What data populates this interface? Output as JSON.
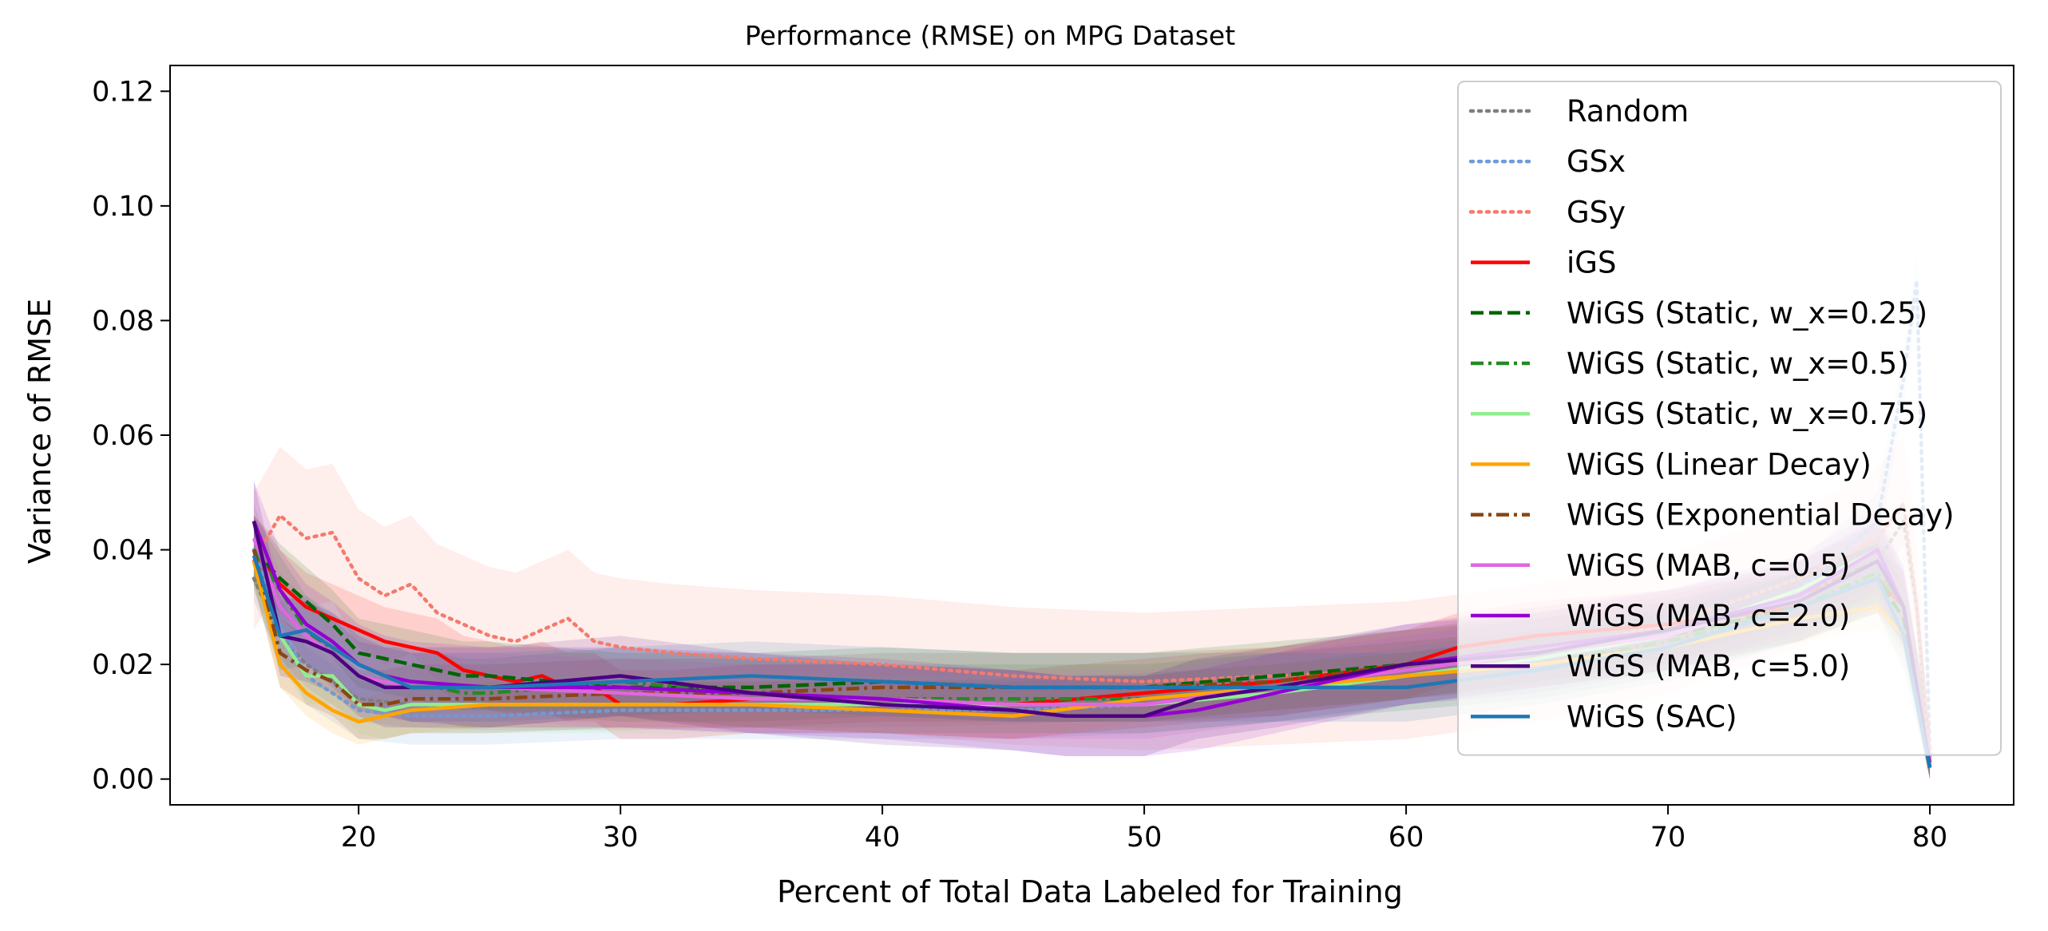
{
  "chart_data": {
    "type": "line",
    "title": "Performance (RMSE) on MPG Dataset",
    "xlabel": "Percent of Total Data Labeled for Training",
    "ylabel": "Variance of RMSE",
    "xlim": [
      12.8,
      83.2
    ],
    "ylim": [
      -0.0045,
      0.1245
    ],
    "xticks": [
      20,
      30,
      40,
      50,
      60,
      70,
      80
    ],
    "yticks": [
      0.0,
      0.02,
      0.04,
      0.06,
      0.08,
      0.1,
      0.12
    ],
    "xtick_labels": [
      "20",
      "30",
      "40",
      "50",
      "60",
      "70",
      "80"
    ],
    "ytick_labels": [
      "0.00",
      "0.02",
      "0.04",
      "0.06",
      "0.08",
      "0.10",
      "0.12"
    ],
    "grid": false,
    "legend_position": "top-right",
    "series": [
      {
        "name": "Random",
        "color": "#7f7f7f",
        "dash": "dotted",
        "band": 0.004,
        "x": [
          16,
          17,
          18,
          20,
          22,
          25,
          30,
          35,
          40,
          45,
          50,
          55,
          60,
          65,
          70,
          75,
          78,
          79,
          79.5,
          80
        ],
        "y": [
          0.035,
          0.025,
          0.02,
          0.014,
          0.013,
          0.0125,
          0.0125,
          0.013,
          0.013,
          0.0135,
          0.0145,
          0.016,
          0.018,
          0.021,
          0.025,
          0.032,
          0.038,
          0.045,
          0.03,
          0.003
        ]
      },
      {
        "name": "GSx",
        "color": "#6f9ad6",
        "dash": "dotted",
        "band": 0.005,
        "x": [
          16,
          17,
          18,
          20,
          22,
          25,
          30,
          35,
          40,
          45,
          50,
          55,
          60,
          65,
          70,
          75,
          78,
          79,
          79.5,
          80
        ],
        "y": [
          0.04,
          0.027,
          0.018,
          0.012,
          0.011,
          0.011,
          0.012,
          0.012,
          0.012,
          0.012,
          0.013,
          0.015,
          0.018,
          0.021,
          0.025,
          0.033,
          0.045,
          0.07,
          0.087,
          0.004
        ]
      },
      {
        "name": "GSy",
        "color": "#f47a6c",
        "dash": "dotted",
        "band": 0.012,
        "x": [
          16,
          17,
          18,
          19,
          20,
          21,
          22,
          23,
          24,
          25,
          26,
          27,
          28,
          29,
          30,
          32,
          35,
          40,
          45,
          50,
          55,
          60,
          65,
          70,
          75,
          78,
          79,
          79.5,
          80
        ],
        "y": [
          0.038,
          0.046,
          0.042,
          0.043,
          0.035,
          0.032,
          0.034,
          0.029,
          0.027,
          0.025,
          0.024,
          0.026,
          0.028,
          0.024,
          0.023,
          0.022,
          0.021,
          0.02,
          0.018,
          0.017,
          0.018,
          0.019,
          0.022,
          0.027,
          0.035,
          0.042,
          0.048,
          0.03,
          0.005
        ]
      },
      {
        "name": "iGS",
        "color": "#ff0000",
        "dash": "solid",
        "band": 0.006,
        "x": [
          16,
          17,
          18,
          19,
          20,
          21,
          22,
          23,
          24,
          25,
          26,
          27,
          28,
          29,
          30,
          32,
          35,
          40,
          45,
          50,
          55,
          60,
          62,
          65,
          70,
          75,
          78,
          79,
          80
        ],
        "y": [
          0.04,
          0.034,
          0.03,
          0.028,
          0.026,
          0.024,
          0.023,
          0.022,
          0.019,
          0.018,
          0.017,
          0.018,
          0.016,
          0.016,
          0.013,
          0.013,
          0.014,
          0.014,
          0.013,
          0.015,
          0.017,
          0.02,
          0.023,
          0.025,
          0.027,
          0.03,
          0.035,
          0.03,
          0.003
        ]
      },
      {
        "name": "WiGS (Static, w_x=0.25)",
        "color": "#006400",
        "dash": "dashed",
        "band": 0.006,
        "x": [
          16,
          17,
          18,
          19,
          20,
          21,
          22,
          23,
          24,
          25,
          30,
          35,
          40,
          45,
          50,
          55,
          60,
          65,
          70,
          75,
          78,
          79,
          80
        ],
        "y": [
          0.04,
          0.035,
          0.031,
          0.027,
          0.022,
          0.021,
          0.02,
          0.019,
          0.018,
          0.018,
          0.016,
          0.016,
          0.017,
          0.016,
          0.016,
          0.018,
          0.02,
          0.022,
          0.025,
          0.03,
          0.035,
          0.028,
          0.003
        ]
      },
      {
        "name": "WiGS (Static, w_x=0.5)",
        "color": "#228b22",
        "dash": "dashdot",
        "band": 0.006,
        "x": [
          16,
          17,
          18,
          19,
          20,
          21,
          22,
          23,
          24,
          25,
          30,
          35,
          40,
          45,
          50,
          55,
          60,
          65,
          70,
          75,
          78,
          79,
          80
        ],
        "y": [
          0.04,
          0.033,
          0.026,
          0.022,
          0.018,
          0.017,
          0.016,
          0.016,
          0.015,
          0.015,
          0.017,
          0.015,
          0.014,
          0.014,
          0.014,
          0.016,
          0.018,
          0.02,
          0.024,
          0.03,
          0.036,
          0.03,
          0.003
        ]
      },
      {
        "name": "WiGS (Static, w_x=0.75)",
        "color": "#90ee90",
        "dash": "solid",
        "band": 0.005,
        "x": [
          16,
          17,
          18,
          19,
          20,
          21,
          22,
          25,
          30,
          35,
          40,
          45,
          50,
          55,
          60,
          65,
          70,
          75,
          78,
          79,
          80
        ],
        "y": [
          0.038,
          0.025,
          0.018,
          0.018,
          0.013,
          0.012,
          0.013,
          0.013,
          0.013,
          0.013,
          0.013,
          0.013,
          0.013,
          0.015,
          0.018,
          0.021,
          0.025,
          0.033,
          0.04,
          0.03,
          0.003
        ]
      },
      {
        "name": "WiGS (Linear Decay)",
        "color": "#ffa500",
        "dash": "solid",
        "band": 0.004,
        "x": [
          16,
          17,
          18,
          19,
          20,
          21,
          22,
          25,
          30,
          35,
          40,
          45,
          50,
          55,
          60,
          65,
          70,
          75,
          78,
          79,
          80
        ],
        "y": [
          0.038,
          0.02,
          0.015,
          0.012,
          0.01,
          0.011,
          0.012,
          0.013,
          0.013,
          0.013,
          0.012,
          0.011,
          0.014,
          0.016,
          0.018,
          0.02,
          0.023,
          0.028,
          0.03,
          0.025,
          0.003
        ]
      },
      {
        "name": "WiGS (Exponential Decay)",
        "color": "#8b4513",
        "dash": "dashdot",
        "band": 0.006,
        "x": [
          16,
          17,
          18,
          19,
          20,
          21,
          22,
          25,
          30,
          35,
          40,
          45,
          50,
          55,
          60,
          65,
          70,
          75,
          78,
          79,
          80
        ],
        "y": [
          0.04,
          0.022,
          0.019,
          0.017,
          0.013,
          0.013,
          0.014,
          0.014,
          0.015,
          0.015,
          0.016,
          0.016,
          0.016,
          0.017,
          0.02,
          0.023,
          0.026,
          0.032,
          0.038,
          0.03,
          0.003
        ]
      },
      {
        "name": "WiGS (MAB, c=0.5)",
        "color": "#e066e0",
        "dash": "solid",
        "band": 0.006,
        "x": [
          16,
          17,
          18,
          19,
          20,
          21,
          22,
          25,
          30,
          35,
          40,
          45,
          50,
          55,
          60,
          65,
          70,
          75,
          78,
          79,
          80
        ],
        "y": [
          0.042,
          0.03,
          0.025,
          0.022,
          0.018,
          0.017,
          0.016,
          0.016,
          0.015,
          0.014,
          0.014,
          0.013,
          0.013,
          0.016,
          0.019,
          0.022,
          0.025,
          0.032,
          0.04,
          0.03,
          0.003
        ]
      },
      {
        "name": "WiGS (MAB, c=2.0)",
        "color": "#9400d3",
        "dash": "solid",
        "band": 0.007,
        "x": [
          16,
          17,
          18,
          19,
          20,
          21,
          22,
          25,
          30,
          35,
          40,
          45,
          47,
          50,
          52,
          55,
          60,
          65,
          70,
          75,
          78,
          79,
          80
        ],
        "y": [
          0.045,
          0.033,
          0.027,
          0.024,
          0.02,
          0.018,
          0.017,
          0.016,
          0.016,
          0.015,
          0.014,
          0.012,
          0.011,
          0.011,
          0.012,
          0.015,
          0.02,
          0.023,
          0.026,
          0.032,
          0.04,
          0.03,
          0.002
        ]
      },
      {
        "name": "WiGS (MAB, c=5.0)",
        "color": "#4b0082",
        "dash": "solid",
        "band": 0.007,
        "x": [
          16,
          17,
          18,
          19,
          20,
          21,
          22,
          25,
          30,
          35,
          40,
          45,
          47,
          50,
          52,
          55,
          60,
          65,
          70,
          75,
          78,
          79,
          80
        ],
        "y": [
          0.045,
          0.025,
          0.024,
          0.022,
          0.018,
          0.016,
          0.016,
          0.016,
          0.018,
          0.015,
          0.013,
          0.012,
          0.011,
          0.011,
          0.014,
          0.016,
          0.02,
          0.022,
          0.026,
          0.031,
          0.038,
          0.03,
          0.002
        ]
      },
      {
        "name": "WiGS (SAC)",
        "color": "#1f77b4",
        "dash": "solid",
        "band": 0.006,
        "x": [
          16,
          17,
          18,
          19,
          20,
          21,
          22,
          25,
          30,
          35,
          40,
          45,
          50,
          55,
          60,
          65,
          70,
          75,
          78,
          79,
          80
        ],
        "y": [
          0.039,
          0.025,
          0.026,
          0.023,
          0.02,
          0.018,
          0.016,
          0.016,
          0.017,
          0.018,
          0.017,
          0.016,
          0.016,
          0.016,
          0.016,
          0.019,
          0.023,
          0.03,
          0.035,
          0.025,
          0.002
        ]
      }
    ]
  }
}
